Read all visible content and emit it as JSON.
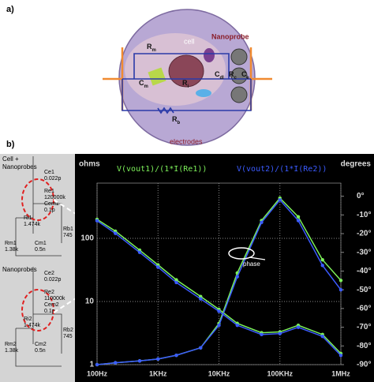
{
  "panel_a": {
    "label": "a)",
    "cell": "cell",
    "nanoprobe": "Nanoprobe",
    "electrodes": "electrodes",
    "components": [
      {
        "main": "R",
        "sub": "m"
      },
      {
        "main": "R",
        "sub": "i"
      },
      {
        "main": "C",
        "sub": "m"
      },
      {
        "main": "C",
        "sub": "dl"
      },
      {
        "main": "R",
        "sub": "c"
      },
      {
        "main": "C",
        "sub": "e"
      },
      {
        "main": "R",
        "sub": "b"
      }
    ]
  },
  "panel_b": {
    "label": "b)",
    "circuits": [
      {
        "title": [
          "Cell +",
          "Nanoprobes"
        ],
        "parts": [
          "Ce1",
          "0.022p",
          "Re1",
          "120000k",
          "Cem1",
          "0.1p",
          "Ri1",
          "1.474k",
          "Rm1",
          "1.38k",
          "Cm1",
          "0.5n",
          "Rb1",
          "745"
        ]
      },
      {
        "title": [
          "Nanoprobes"
        ],
        "parts": [
          "Ce2",
          "0.022p",
          "Re2",
          "110000k",
          "Cem2",
          "0.1p",
          "Ri2",
          "1.474k",
          "Rm2",
          "1.38k",
          "Cm2",
          "0.5n",
          "Rb2",
          "745"
        ]
      }
    ]
  },
  "chart_data": {
    "type": "line",
    "y_label": "ohms",
    "y2_label": "degrees",
    "annotation": "phase",
    "x": [
      100,
      200,
      500,
      1000,
      2000,
      5000,
      10000,
      20000,
      50000,
      100000,
      200000,
      500000,
      1000000
    ],
    "xlim": [
      100,
      1000000
    ],
    "log_x": true,
    "log_y": true,
    "grid": true,
    "xticks": [
      {
        "value": 100,
        "label": "100Hz"
      },
      {
        "value": 1000,
        "label": "1KHz"
      },
      {
        "value": 10000,
        "label": "10KHz"
      },
      {
        "value": 100000,
        "label": "100KHz"
      },
      {
        "value": 1000000,
        "label": "1MHz"
      }
    ],
    "ylim": [
      1,
      750
    ],
    "yticks": [
      1,
      10,
      100
    ],
    "y2lim": [
      -90,
      7
    ],
    "y2ticks": [
      {
        "value": 0,
        "label": "0°"
      },
      {
        "value": -10,
        "label": "-10°"
      },
      {
        "value": -20,
        "label": "-20°"
      },
      {
        "value": -30,
        "label": "-30°"
      },
      {
        "value": -40,
        "label": "-40°"
      },
      {
        "value": -50,
        "label": "-50°"
      },
      {
        "value": -60,
        "label": "-60°"
      },
      {
        "value": -70,
        "label": "-70°"
      },
      {
        "value": -80,
        "label": "-80°"
      },
      {
        "value": -90,
        "label": "-90°"
      }
    ],
    "series": [
      {
        "name": "V(vout1)/(1*I(Re1))",
        "color": "#7df05a",
        "values": [
          200,
          130,
          65,
          38,
          22,
          12,
          7.5,
          4.5,
          3.2,
          3.3,
          4.2,
          3.0,
          1.5
        ],
        "phase": [
          -90,
          -89,
          -88,
          -87,
          -85,
          -81,
          -68,
          -41,
          -13,
          -1,
          -11,
          -34,
          -45
        ]
      },
      {
        "name": "V(vout2)/(1*I(Re2))",
        "color": "#3b5bff",
        "values": [
          190,
          120,
          60,
          35,
          20,
          11,
          7,
          4.2,
          3.0,
          3.1,
          3.9,
          2.8,
          1.4
        ],
        "phase": [
          -90,
          -89,
          -88,
          -87,
          -85,
          -81,
          -69,
          -43,
          -14,
          -2,
          -13,
          -37,
          -50
        ]
      }
    ]
  }
}
